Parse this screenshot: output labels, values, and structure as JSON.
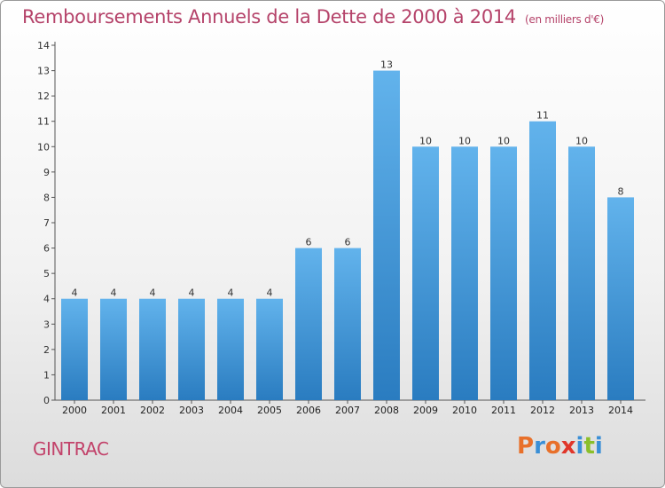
{
  "chart_data": {
    "type": "bar",
    "title": "Remboursements Annuels de la Dette de 2000 à 2014",
    "subtitle": "(en milliers d'€)",
    "categories": [
      "2000",
      "2001",
      "2002",
      "2003",
      "2004",
      "2005",
      "2006",
      "2007",
      "2008",
      "2009",
      "2010",
      "2011",
      "2012",
      "2013",
      "2014"
    ],
    "values": [
      4,
      4,
      4,
      4,
      4,
      4,
      6,
      6,
      13,
      10,
      10,
      10,
      11,
      10,
      8
    ],
    "ylim": [
      0,
      14
    ],
    "yticks": [
      0,
      1,
      2,
      3,
      4,
      5,
      6,
      7,
      8,
      9,
      10,
      11,
      12,
      13,
      14
    ],
    "bar_color": "#3d95d6",
    "grid": false,
    "data_labels": true
  },
  "footer": {
    "commune": "GINTRAC",
    "logo_text": "Proxiti",
    "logo_colors": [
      "#e8702a",
      "#3a8fd6",
      "#e8702a",
      "#e0362a",
      "#3a8fd6",
      "#8bbf2a",
      "#3a8fd6"
    ]
  }
}
